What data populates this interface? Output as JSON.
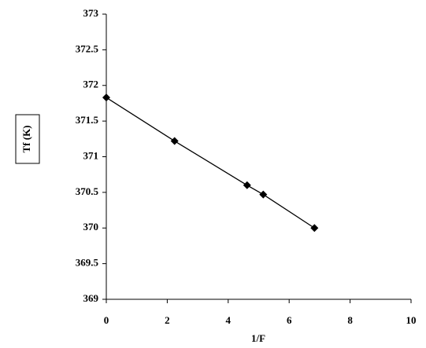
{
  "chart_data": {
    "type": "line",
    "x_label": "1/F",
    "y_label": "Tf (K)",
    "x": [
      0,
      2.24,
      4.62,
      5.15,
      6.83
    ],
    "series": [
      {
        "color": "#000000",
        "marker": "diamond",
        "values": [
          371.83,
          371.22,
          370.6,
          370.47,
          370.0
        ]
      }
    ],
    "xlim": [
      0,
      10
    ],
    "xticks": [
      0,
      2,
      4,
      6,
      8,
      10
    ],
    "ylim": [
      369,
      373
    ],
    "yticks": [
      369,
      369.5,
      370,
      370.5,
      371,
      371.5,
      372,
      372.5,
      373
    ],
    "grid": false
  }
}
